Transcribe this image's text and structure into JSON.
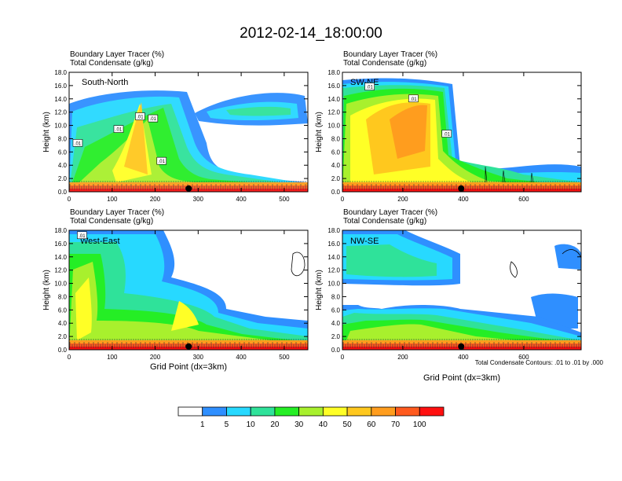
{
  "title": "2012-02-14_18:00:00",
  "chart_data": [
    {
      "type": "heatmap",
      "panel_label": "South-North",
      "header_line1": "Boundary Layer Tracer    (%)",
      "header_line2": "Total Condensate    (g/kg)",
      "ylabel": "Height (km)",
      "xlabel": "",
      "xlim": [
        0,
        555
      ],
      "ylim": [
        0,
        18
      ],
      "xticks": [
        "0",
        "100",
        "200",
        "300",
        "400",
        "500"
      ],
      "xtick_values": [
        0,
        100,
        200,
        300,
        400,
        500
      ],
      "yticks": [
        "0.0",
        "2.0",
        "4.0",
        "6.0",
        "8.0",
        "10.0",
        "12.0",
        "14.0",
        "16.0",
        "18.0"
      ],
      "contour_labels": [
        {
          "text": ".01",
          "x": 165,
          "y": 11.3
        },
        {
          "text": ".01",
          "x": 195,
          "y": 11.0
        },
        {
          "text": ".01",
          "x": 115,
          "y": 9.4
        },
        {
          "text": ".01",
          "x": 20,
          "y": 7.3
        },
        {
          "text": ".01",
          "x": 215,
          "y": 4.6
        }
      ],
      "marker_x": 278
    },
    {
      "type": "heatmap",
      "panel_label": "SW-NE",
      "header_line1": "Boundary Layer Tracer    (%)",
      "header_line2": "Total Condensate    (g/kg)",
      "ylabel": "Height (km)",
      "xlabel": "",
      "xlim": [
        0,
        790
      ],
      "ylim": [
        0,
        18
      ],
      "xticks": [
        "0",
        "200",
        "400",
        "600"
      ],
      "xtick_values": [
        0,
        200,
        400,
        600
      ],
      "yticks": [
        "0.0",
        "2.0",
        "4.0",
        "6.0",
        "8.0",
        "10.0",
        "12.0",
        "14.0",
        "16.0",
        "18.0"
      ],
      "contour_labels": [
        {
          "text": ".01",
          "x": 90,
          "y": 15.8
        },
        {
          "text": ".01",
          "x": 235,
          "y": 14.0
        },
        {
          "text": ".01",
          "x": 345,
          "y": 8.7
        }
      ],
      "marker_x": 393
    },
    {
      "type": "heatmap",
      "panel_label": "West-East",
      "header_line1": "Boundary Layer Tracer    (%)",
      "header_line2": "Total Condensate    (g/kg)",
      "ylabel": "Height (km)",
      "xlabel": "Grid Point (dx=3km)",
      "xlim": [
        0,
        555
      ],
      "ylim": [
        0,
        18
      ],
      "xticks": [
        "0",
        "100",
        "200",
        "300",
        "400",
        "500"
      ],
      "xtick_values": [
        0,
        100,
        200,
        300,
        400,
        500
      ],
      "yticks": [
        "0.0",
        "2.0",
        "4.0",
        "6.0",
        "8.0",
        "10.0",
        "12.0",
        "14.0",
        "16.0",
        "18.0"
      ],
      "contour_labels": [
        {
          "text": ".01",
          "x": 30,
          "y": 17.2
        }
      ],
      "marker_x": 278
    },
    {
      "type": "heatmap",
      "panel_label": "NW-SE",
      "header_line1": "Boundary Layer Tracer    (%)",
      "header_line2": "Total Condensate    (g/kg)",
      "ylabel": "Height (km)",
      "xlabel": "Grid Point (dx=3km)",
      "xlim": [
        0,
        790
      ],
      "ylim": [
        0,
        18
      ],
      "xticks": [
        "0",
        "200",
        "400",
        "600"
      ],
      "xtick_values": [
        0,
        200,
        400,
        600
      ],
      "yticks": [
        "0.0",
        "2.0",
        "4.0",
        "6.0",
        "8.0",
        "10.0",
        "12.0",
        "14.0",
        "16.0",
        "18.0"
      ],
      "contour_labels": [],
      "marker_x": 393,
      "contour_note": "Total Condensate Contours: .01 to .01 by .000"
    }
  ],
  "colorbar": {
    "levels": [
      "1",
      "5",
      "10",
      "20",
      "30",
      "40",
      "50",
      "60",
      "70",
      "100"
    ],
    "colors": [
      "#ffffff",
      "#2f8fff",
      "#27d9ff",
      "#2fe29a",
      "#25ee25",
      "#a8f02d",
      "#ffff26",
      "#ffc81e",
      "#ff9d1e",
      "#ff5a1e",
      "#ff1010"
    ]
  }
}
